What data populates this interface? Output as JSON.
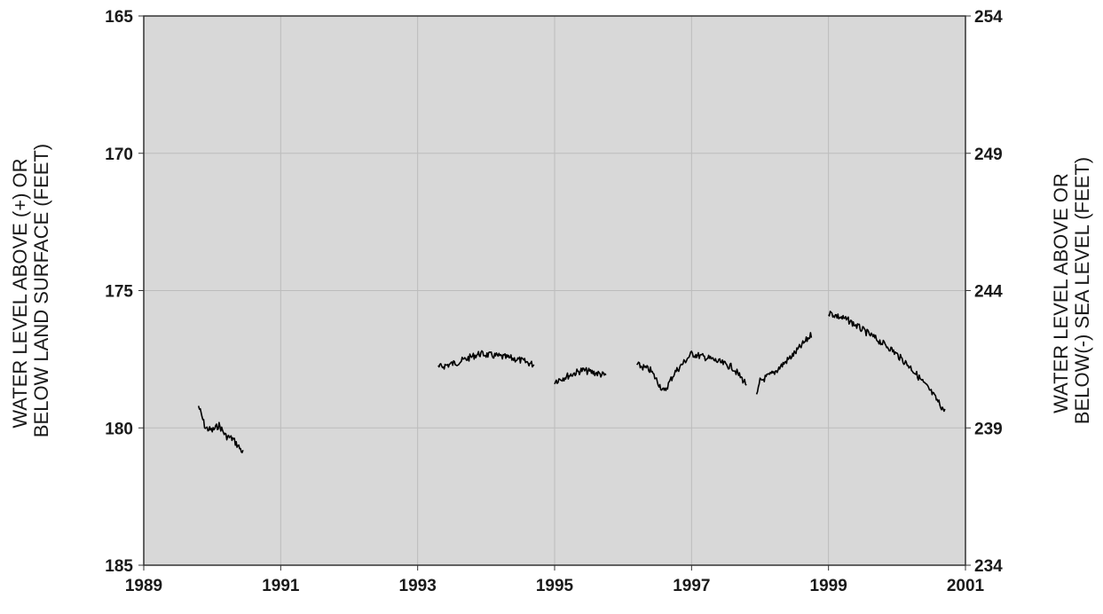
{
  "chart_data": {
    "type": "line",
    "title": "",
    "ylabel_left": [
      "WATER LEVEL ABOVE (+) OR",
      "BELOW LAND SURFACE (FEET)"
    ],
    "ylabel_right": [
      "WATER LEVEL ABOVE OR",
      "BELOW(-) SEA LEVEL (FEET)"
    ],
    "x_ticks": [
      "1989",
      "1991",
      "1993",
      "1995",
      "1997",
      "1999",
      "2001"
    ],
    "y_left_ticks": [
      "165",
      "170",
      "175",
      "180",
      "185"
    ],
    "y_right_ticks": [
      "254",
      "249",
      "244",
      "239",
      "234"
    ],
    "xlim": [
      1989,
      2001
    ],
    "ylim_left": [
      165,
      185
    ],
    "ylim_right": [
      254,
      234
    ],
    "y_left_inverted": true,
    "grid": true,
    "colors": {
      "plot_bg": "#d8d8d8",
      "grid": "#bcbcbc",
      "line": "#000000",
      "frame": "#333333"
    },
    "series": [
      {
        "segments": [
          [
            [
              1989.8,
              179.2
            ],
            [
              1989.9,
              180.0
            ],
            [
              1990.0,
              180.1
            ],
            [
              1990.1,
              179.9
            ],
            [
              1990.2,
              180.3
            ],
            [
              1990.3,
              180.4
            ],
            [
              1990.45,
              180.9
            ]
          ],
          [
            [
              1993.3,
              177.8
            ],
            [
              1993.6,
              177.6
            ],
            [
              1993.9,
              177.3
            ],
            [
              1994.2,
              177.4
            ],
            [
              1994.45,
              177.5
            ],
            [
              1994.7,
              177.7
            ]
          ],
          [
            [
              1995.0,
              178.3
            ],
            [
              1995.2,
              178.1
            ],
            [
              1995.4,
              177.9
            ],
            [
              1995.6,
              178.0
            ],
            [
              1995.75,
              178.1
            ]
          ],
          [
            [
              1996.2,
              177.7
            ],
            [
              1996.4,
              177.9
            ],
            [
              1996.6,
              178.7
            ],
            [
              1996.75,
              178.0
            ],
            [
              1997.0,
              177.3
            ],
            [
              1997.3,
              177.5
            ],
            [
              1997.6,
              177.8
            ],
            [
              1997.8,
              178.4
            ]
          ],
          [
            [
              1997.95,
              178.9
            ],
            [
              1998.0,
              178.3
            ],
            [
              1998.2,
              178.0
            ],
            [
              1998.5,
              177.3
            ],
            [
              1998.75,
              176.6
            ]
          ],
          [
            [
              1999.0,
              175.8
            ],
            [
              1999.3,
              176.1
            ],
            [
              1999.6,
              176.6
            ],
            [
              1999.9,
              177.1
            ],
            [
              2000.2,
              177.8
            ],
            [
              2000.5,
              178.7
            ],
            [
              2000.7,
              179.4
            ]
          ]
        ]
      }
    ]
  }
}
